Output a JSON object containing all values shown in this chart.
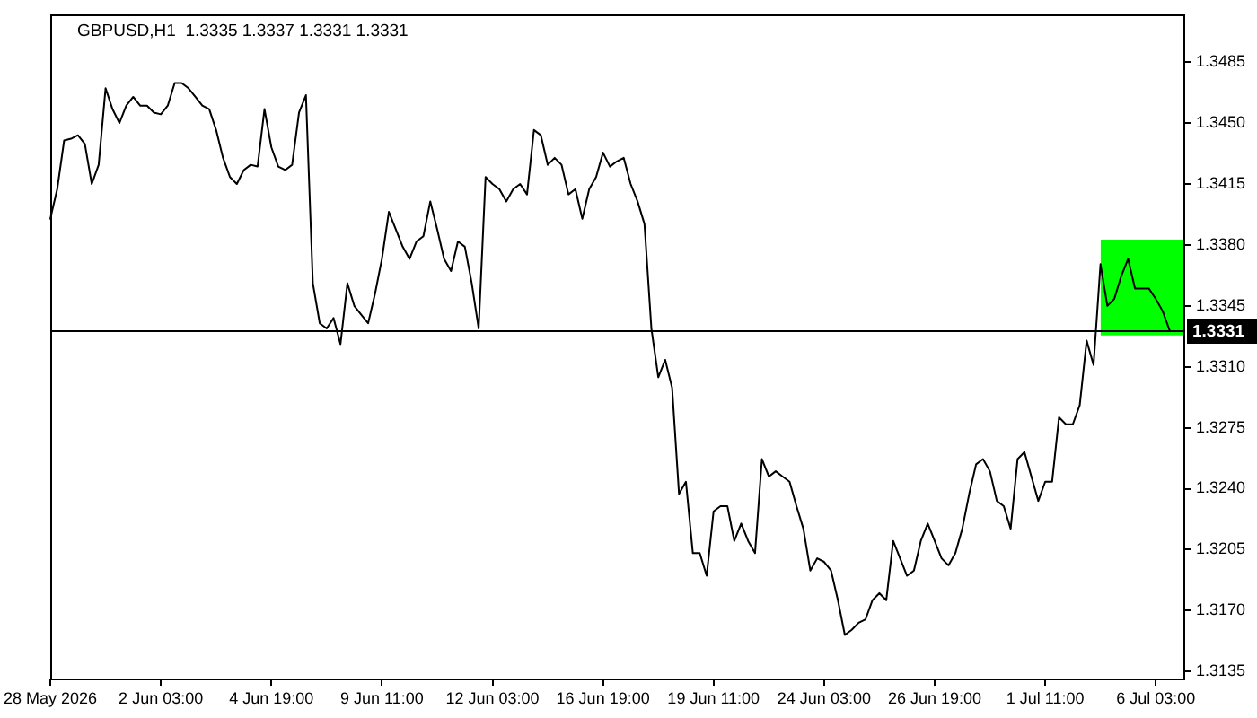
{
  "chart_data": {
    "type": "line",
    "title": "GBPUSD,H1  1.3335 1.3337 1.3331 1.3331",
    "categories": [
      "28 May 2026",
      null,
      null,
      null,
      null,
      null,
      null,
      null,
      null,
      null,
      null,
      null,
      null,
      null,
      null,
      null,
      "2 Jun 03:00",
      null,
      null,
      null,
      null,
      null,
      null,
      null,
      null,
      null,
      null,
      null,
      null,
      null,
      null,
      null,
      "4 Jun 19:00",
      null,
      null,
      null,
      null,
      null,
      null,
      null,
      null,
      null,
      null,
      null,
      null,
      null,
      null,
      null,
      "9 Jun 11:00",
      null,
      null,
      null,
      null,
      null,
      null,
      null,
      null,
      null,
      null,
      null,
      null,
      null,
      null,
      null,
      "12 Jun 03:00",
      null,
      null,
      null,
      null,
      null,
      null,
      null,
      null,
      null,
      null,
      null,
      null,
      null,
      null,
      null,
      "16 Jun 19:00",
      null,
      null,
      null,
      null,
      null,
      null,
      null,
      null,
      null,
      null,
      null,
      null,
      null,
      null,
      null,
      "19 Jun 11:00",
      null,
      null,
      null,
      null,
      null,
      null,
      null,
      null,
      null,
      null,
      null,
      null,
      null,
      null,
      null,
      "24 Jun 03:00",
      null,
      null,
      null,
      null,
      null,
      null,
      null,
      null,
      null,
      null,
      null,
      null,
      null,
      null,
      null,
      "26 Jun 19:00",
      null,
      null,
      null,
      null,
      null,
      null,
      null,
      null,
      null,
      null,
      null,
      null,
      null,
      null,
      null,
      "1 Jul 11:00",
      null,
      null,
      null,
      null,
      null,
      null,
      null,
      null,
      null,
      null,
      null,
      null,
      null,
      null,
      null,
      "6 Jul 03:00",
      null,
      null,
      null,
      null
    ],
    "series": [
      {
        "color": "#000000",
        "values": [
          1.3395,
          1.3412,
          1.344,
          1.3441,
          1.3443,
          1.3438,
          1.3415,
          1.3426,
          1.347,
          1.3458,
          1.345,
          1.346,
          1.3465,
          1.346,
          1.346,
          1.3456,
          1.3455,
          1.346,
          1.3473,
          1.3473,
          1.347,
          1.3465,
          1.346,
          1.3458,
          1.3446,
          1.343,
          1.3419,
          1.3415,
          1.3423,
          1.3426,
          1.3425,
          1.3458,
          1.3436,
          1.3425,
          1.3423,
          1.3426,
          1.3456,
          1.3466,
          1.3358,
          1.3335,
          1.3332,
          1.3338,
          1.3323,
          1.3358,
          1.3345,
          1.334,
          1.3335,
          1.3352,
          1.3372,
          1.3399,
          1.3389,
          1.3379,
          1.3372,
          1.3382,
          1.3385,
          1.3405,
          1.3389,
          1.3372,
          1.3365,
          1.3382,
          1.3379,
          1.3358,
          1.3332,
          1.3419,
          1.3415,
          1.3412,
          1.3405,
          1.3412,
          1.3415,
          1.3409,
          1.3446,
          1.3443,
          1.3426,
          1.343,
          1.3426,
          1.3409,
          1.3412,
          1.3395,
          1.3412,
          1.3419,
          1.3433,
          1.3425,
          1.3428,
          1.343,
          1.3415,
          1.3405,
          1.3392,
          1.3332,
          1.3304,
          1.3314,
          1.3298,
          1.3237,
          1.3244,
          1.3203,
          1.3203,
          1.319,
          1.3227,
          1.323,
          1.323,
          1.321,
          1.322,
          1.321,
          1.3203,
          1.3257,
          1.3247,
          1.325,
          1.3247,
          1.3244,
          1.323,
          1.3217,
          1.3193,
          1.32,
          1.3198,
          1.3193,
          1.3176,
          1.3156,
          1.3159,
          1.3163,
          1.3165,
          1.3176,
          1.318,
          1.3176,
          1.321,
          1.32,
          1.319,
          1.3193,
          1.321,
          1.322,
          1.321,
          1.32,
          1.3196,
          1.3203,
          1.3217,
          1.3237,
          1.3254,
          1.3257,
          1.325,
          1.3233,
          1.323,
          1.3217,
          1.3257,
          1.3261,
          1.3247,
          1.3233,
          1.3244,
          1.3244,
          1.3281,
          1.3277,
          1.3277,
          1.3288,
          1.3325,
          1.3311,
          1.3369,
          1.3345,
          1.3349,
          1.3362,
          1.3372,
          1.3355,
          1.3355,
          1.3355,
          1.3349,
          1.3342,
          1.3331,
          null,
          null
        ]
      },
      {
        "color": "#00ff00",
        "values": [
          null,
          null,
          null,
          null,
          null,
          null,
          null,
          null,
          null,
          null,
          null,
          null,
          null,
          null,
          null,
          null,
          null,
          null,
          null,
          null,
          null,
          null,
          null,
          null,
          null,
          null,
          null,
          null,
          null,
          null,
          null,
          null,
          null,
          null,
          null,
          null,
          null,
          null,
          null,
          null,
          null,
          null,
          null,
          null,
          null,
          null,
          null,
          null,
          null,
          null,
          null,
          null,
          null,
          null,
          null,
          null,
          null,
          null,
          null,
          null,
          null,
          null,
          null,
          null,
          null,
          null,
          null,
          null,
          null,
          null,
          null,
          null,
          null,
          null,
          null,
          null,
          null,
          null,
          null,
          null,
          null,
          null,
          null,
          null,
          null,
          null,
          null,
          null,
          null,
          null,
          null,
          null,
          null,
          null,
          null,
          null,
          null,
          null,
          null,
          null,
          null,
          null,
          null,
          null,
          null,
          null,
          null,
          null,
          null,
          null,
          null,
          null,
          null,
          null,
          null,
          null,
          null,
          null,
          null,
          null,
          null,
          null,
          null,
          null,
          null,
          null,
          null,
          null,
          null,
          null,
          null,
          null,
          null,
          null,
          null,
          null,
          null,
          null,
          null,
          null,
          null,
          null,
          null,
          null,
          null,
          null,
          null,
          null,
          null,
          null,
          null,
          null,
          null,
          null,
          null,
          null,
          null,
          null,
          null,
          null,
          null,
          null,
          null,
          null,
          null
        ],
        "lower": [
          null,
          null,
          null,
          null,
          null,
          null,
          null,
          null,
          null,
          null,
          null,
          null,
          null,
          null,
          null,
          null,
          null,
          null,
          null,
          null,
          null,
          null,
          null,
          null,
          null,
          null,
          null,
          null,
          null,
          null,
          null,
          null,
          null,
          null,
          null,
          null,
          null,
          null,
          null,
          null,
          null,
          null,
          null,
          null,
          null,
          null,
          null,
          null,
          null,
          null,
          null,
          null,
          null,
          null,
          null,
          null,
          null,
          null,
          null,
          null,
          null,
          null,
          null,
          null,
          null,
          null,
          null,
          null,
          null,
          null,
          null,
          null,
          null,
          null,
          null,
          null,
          null,
          null,
          null,
          null,
          null,
          null,
          null,
          null,
          null,
          null,
          null,
          null,
          null,
          null,
          null,
          null,
          null,
          null,
          null,
          null,
          null,
          null,
          null,
          null,
          null,
          null,
          null,
          null,
          null,
          null,
          null,
          null,
          null,
          null,
          null,
          null,
          null,
          null,
          null,
          null,
          null,
          null,
          null,
          null,
          null,
          null,
          null,
          null,
          null,
          null,
          null,
          null,
          null,
          null,
          null,
          null,
          null,
          null,
          null,
          null,
          null,
          null,
          null,
          null,
          null,
          null,
          null,
          null,
          null,
          null,
          null,
          null,
          null,
          null,
          null,
          null,
          1.3328,
          1.3328,
          1.3328,
          1.3328,
          1.3328,
          1.3328,
          1.3328,
          1.3328,
          1.3328,
          1.3328,
          1.3328,
          1.3328,
          1.3328
        ],
        "upper": [
          null,
          null,
          null,
          null,
          null,
          null,
          null,
          null,
          null,
          null,
          null,
          null,
          null,
          null,
          null,
          null,
          null,
          null,
          null,
          null,
          null,
          null,
          null,
          null,
          null,
          null,
          null,
          null,
          null,
          null,
          null,
          null,
          null,
          null,
          null,
          null,
          null,
          null,
          null,
          null,
          null,
          null,
          null,
          null,
          null,
          null,
          null,
          null,
          null,
          null,
          null,
          null,
          null,
          null,
          null,
          null,
          null,
          null,
          null,
          null,
          null,
          null,
          null,
          null,
          null,
          null,
          null,
          null,
          null,
          null,
          null,
          null,
          null,
          null,
          null,
          null,
          null,
          null,
          null,
          null,
          null,
          null,
          null,
          null,
          null,
          null,
          null,
          null,
          null,
          null,
          null,
          null,
          null,
          null,
          null,
          null,
          null,
          null,
          null,
          null,
          null,
          null,
          null,
          null,
          null,
          null,
          null,
          null,
          null,
          null,
          null,
          null,
          null,
          null,
          null,
          null,
          null,
          null,
          null,
          null,
          null,
          null,
          null,
          null,
          null,
          null,
          null,
          null,
          null,
          null,
          null,
          null,
          null,
          null,
          null,
          null,
          null,
          null,
          null,
          null,
          null,
          null,
          null,
          null,
          null,
          null,
          null,
          null,
          null,
          null,
          null,
          null,
          1.3383,
          1.3383,
          1.3383,
          1.3383,
          1.3383,
          1.3383,
          1.3383,
          1.3383,
          1.3383,
          1.3383,
          1.3383,
          1.3383,
          1.3383
        ]
      }
    ],
    "ylim": [
      1.3131,
      1.3512
    ],
    "yticks": [
      1.3135,
      {
        "value": 1.317,
        "label": "1.3170"
      },
      1.3205,
      {
        "value": 1.324,
        "label": "1.3240"
      },
      1.3275,
      {
        "value": 1.331,
        "label": "1.3310"
      },
      1.3345,
      {
        "value": 1.338,
        "label": "1.3380"
      },
      1.3415,
      {
        "value": 1.345,
        "label": "1.3450"
      },
      1.3485
    ],
    "ref_lines": [
      {
        "axis": "y",
        "value": 1.3331,
        "label": "1.3331",
        "color": "#000000"
      }
    ],
    "marker": "none"
  }
}
